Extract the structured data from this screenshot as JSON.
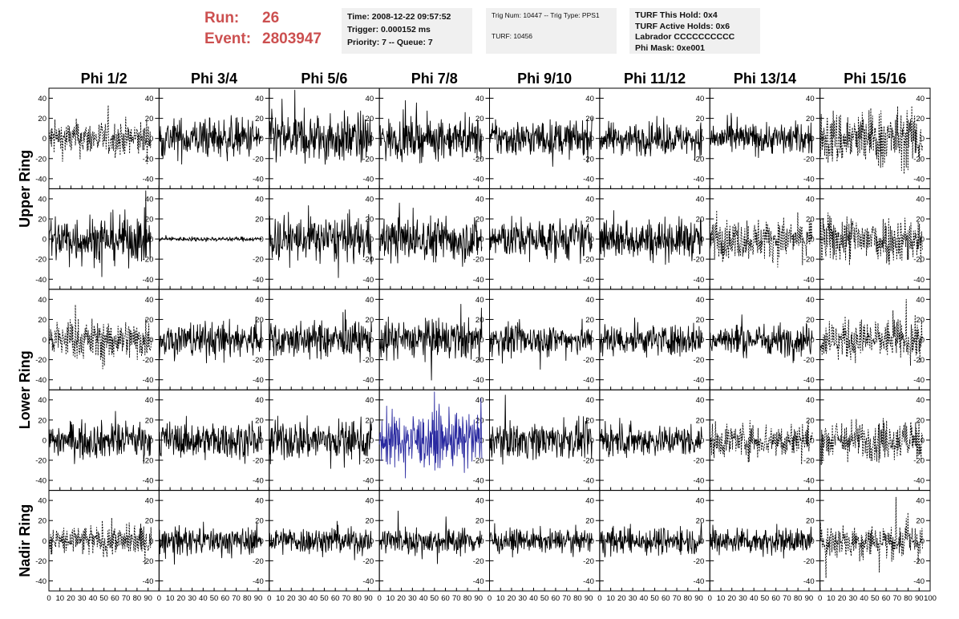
{
  "header": {
    "run_label": "Run:",
    "run_value": "26",
    "event_label": "Event:",
    "event_value": "2803947",
    "time": "Time: 2008-12-22 09:57:52",
    "trigger": "Trigger: 0.000152 ms",
    "priority": "Priority: 7 -- Queue: 7",
    "trig_num": "Trig Num: 10447 -- Trig Type: PPS1",
    "turf": "TURF: 10456",
    "turf_hold": "TURF This Hold: 0x4",
    "turf_active": "TURF Active Holds: 0x6",
    "labrador": "Labrador CCCCCCCCCC",
    "phi_mask": "Phi Mask: 0xe001"
  },
  "colors": {
    "run_text": "#cc5050",
    "trace": "#000000",
    "highlight_trace": "#2a2aa0",
    "info_bg": "#f0f0f0"
  },
  "chart_data": {
    "type": "line",
    "columns": [
      "Phi 1/2",
      "Phi 3/4",
      "Phi 5/6",
      "Phi 7/8",
      "Phi 9/10",
      "Phi 11/12",
      "Phi 13/14",
      "Phi 15/16"
    ],
    "rows": [
      "Upper Ring",
      "Upper Ring",
      "Lower Ring",
      "Lower Ring",
      "Nadir Ring"
    ],
    "row_labels": [
      "Upper Ring",
      "Lower Ring",
      "Nadir Ring"
    ],
    "xlim": [
      0,
      100
    ],
    "ylim": [
      -50,
      50
    ],
    "x_ticks": [
      0,
      10,
      20,
      30,
      40,
      50,
      60,
      70,
      80,
      90,
      100
    ],
    "x_tick_labels": [
      "0",
      "10",
      "20",
      "30",
      "40",
      "50",
      "60",
      "70",
      "80",
      "90",
      "100"
    ],
    "y_ticks": [
      -40,
      -20,
      0,
      20,
      40
    ],
    "y_tick_labels": [
      "-40",
      "-20",
      "0",
      "20",
      "40"
    ],
    "trace_x_range": [
      0,
      93
    ],
    "styles": [
      [
        "dashed",
        "solid",
        "solid",
        "solid",
        "solid",
        "solid",
        "solid",
        "dashed"
      ],
      [
        "solid",
        "solid",
        "solid",
        "solid",
        "solid",
        "solid",
        "dashed",
        "dashed"
      ],
      [
        "dashed",
        "solid",
        "solid",
        "solid",
        "solid",
        "solid",
        "solid",
        "dashed"
      ],
      [
        "solid",
        "solid",
        "solid",
        "highlight",
        "solid",
        "solid",
        "dashed",
        "dashed"
      ],
      [
        "dashed",
        "solid",
        "solid",
        "solid",
        "solid",
        "solid",
        "solid",
        "dashed"
      ]
    ],
    "amplitudes": [
      [
        16,
        18,
        22,
        18,
        16,
        14,
        14,
        26
      ],
      [
        22,
        2,
        20,
        20,
        18,
        18,
        18,
        22
      ],
      [
        18,
        16,
        16,
        18,
        14,
        14,
        14,
        18
      ],
      [
        16,
        16,
        18,
        24,
        16,
        14,
        16,
        18
      ],
      [
        14,
        12,
        12,
        12,
        10,
        12,
        12,
        16
      ]
    ]
  }
}
